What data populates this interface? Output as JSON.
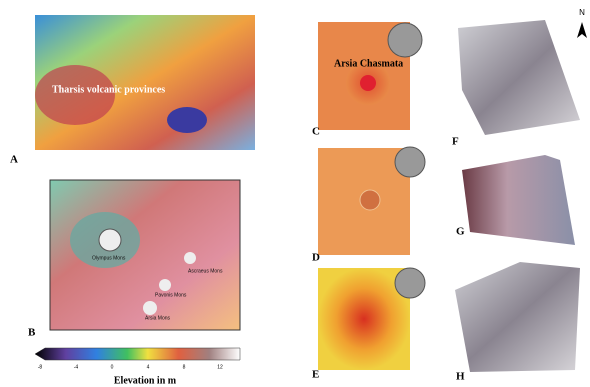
{
  "panels": [
    {
      "letter": "A",
      "labels": [
        "Tharsis volcanic provinces"
      ]
    },
    {
      "letter": "B",
      "labels": [
        "Olympus Mons",
        "Ascraeus Mons",
        "Pavonis Mons",
        "Arsia Mons"
      ]
    },
    {
      "letter": "C",
      "labels": [
        "Arsia Chasmata"
      ]
    },
    {
      "letter": "D"
    },
    {
      "letter": "E"
    },
    {
      "letter": "F"
    },
    {
      "letter": "G"
    },
    {
      "letter": "H"
    }
  ],
  "colorbar": {
    "title": "Elevation in m",
    "ticks": [
      -8,
      -4,
      0,
      4,
      8,
      12
    ]
  },
  "north": "N"
}
